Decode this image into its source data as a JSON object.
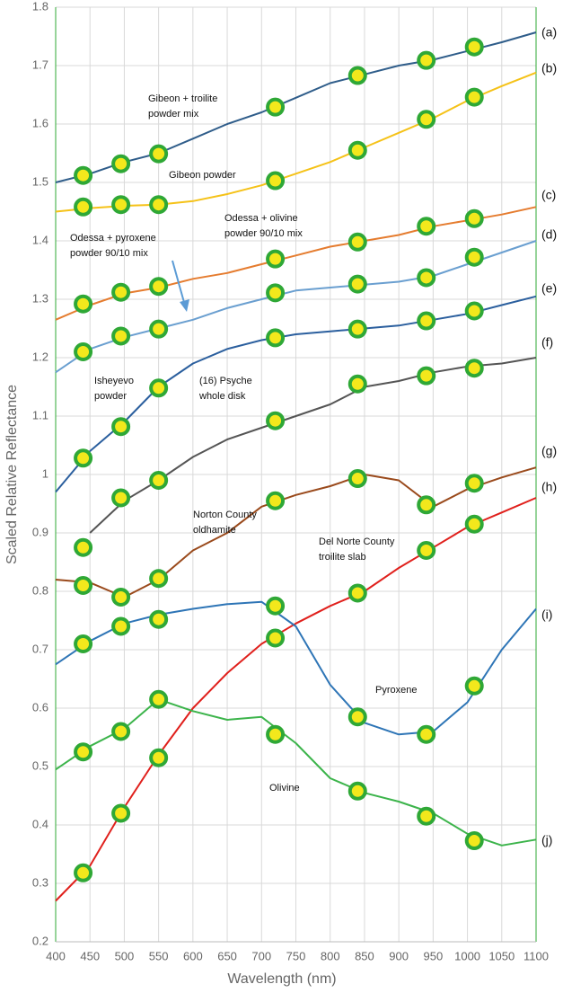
{
  "chart_data": {
    "type": "line",
    "xlabel": "Wavelength (nm)",
    "ylabel": "Scaled Relative Reflectance",
    "x": [
      400,
      450,
      500,
      550,
      600,
      650,
      700,
      750,
      800,
      850,
      900,
      950,
      1000,
      1050,
      1100
    ],
    "marker_x": [
      440,
      495,
      550,
      720,
      840,
      940,
      1010
    ],
    "marker_color": "#f3e81c",
    "marker_edge": "#2fa836",
    "xlim": [
      400,
      1100
    ],
    "ylim": [
      0.2,
      1.8
    ],
    "xticks": [
      400,
      450,
      500,
      550,
      600,
      650,
      700,
      750,
      800,
      850,
      900,
      950,
      1000,
      1050,
      1100
    ],
    "yticks": [
      0.2,
      0.3,
      0.4,
      0.5,
      0.6,
      0.7,
      0.8,
      0.9,
      1,
      1.1,
      1.2,
      1.3,
      1.4,
      1.5,
      1.6,
      1.7,
      1.8
    ],
    "grid": true,
    "series": [
      {
        "tag": "(a)",
        "label": [
          "Gibeon + troilite",
          "powder mix"
        ],
        "color": "#2f5d8a",
        "values": [
          1.5,
          1.515,
          1.535,
          1.55,
          1.575,
          1.6,
          1.62,
          1.645,
          1.67,
          1.685,
          1.7,
          1.71,
          1.725,
          1.74,
          1.757
        ],
        "marker_values": [
          1.512,
          1.532,
          1.549,
          1.629,
          1.683,
          1.709,
          1.732
        ]
      },
      {
        "tag": "(b)",
        "label": [
          "Gibeon powder"
        ],
        "color": "#f5c218",
        "values": [
          1.45,
          1.456,
          1.46,
          1.462,
          1.468,
          1.48,
          1.495,
          1.515,
          1.535,
          1.56,
          1.585,
          1.61,
          1.64,
          1.665,
          1.688
        ],
        "marker_values": [
          1.458,
          1.462,
          1.462,
          1.503,
          1.555,
          1.608,
          1.646
        ]
      },
      {
        "tag": "(c)",
        "label": [
          "Odessa + olivine",
          "powder 90/10 mix"
        ],
        "color": "#e57c2f",
        "values": [
          1.265,
          1.29,
          1.31,
          1.32,
          1.335,
          1.345,
          1.36,
          1.375,
          1.39,
          1.4,
          1.41,
          1.425,
          1.435,
          1.445,
          1.458
        ],
        "marker_values": [
          1.292,
          1.312,
          1.322,
          1.369,
          1.398,
          1.425,
          1.438
        ]
      },
      {
        "tag": "(d)",
        "label": [
          "Odessa + pyroxene",
          "powder 90/10 mix"
        ],
        "color": "#6a9fd0",
        "values": [
          1.175,
          1.215,
          1.235,
          1.25,
          1.265,
          1.285,
          1.3,
          1.315,
          1.32,
          1.325,
          1.33,
          1.34,
          1.36,
          1.38,
          1.4
        ],
        "marker_values": [
          1.21,
          1.237,
          1.249,
          1.311,
          1.326,
          1.337,
          1.372
        ]
      },
      {
        "tag": "(e)",
        "label": [
          "Isheyevo",
          "powder"
        ],
        "color": "#2b5f9e",
        "values": [
          0.97,
          1.04,
          1.09,
          1.15,
          1.19,
          1.215,
          1.23,
          1.24,
          1.245,
          1.25,
          1.255,
          1.265,
          1.275,
          1.29,
          1.305
        ],
        "marker_values": [
          1.028,
          1.082,
          1.148,
          1.234,
          1.249,
          1.263,
          1.28
        ]
      },
      {
        "tag": "(f)",
        "label": [
          "(16) Psyche",
          "whole disk"
        ],
        "color": "#555555",
        "values": [
          null,
          0.9,
          0.955,
          0.99,
          1.03,
          1.06,
          1.08,
          1.1,
          1.12,
          1.15,
          1.16,
          1.175,
          1.185,
          1.19,
          1.2
        ],
        "marker_values": [
          0.875,
          0.96,
          0.99,
          1.092,
          1.155,
          1.169,
          1.182
        ]
      },
      {
        "tag": "(g)",
        "label": [
          "Norton County",
          "oldhamite"
        ],
        "color": "#9a4a1c",
        "values": [
          0.82,
          0.815,
          0.79,
          0.82,
          0.87,
          0.9,
          0.945,
          0.965,
          0.98,
          1.0,
          0.99,
          0.945,
          0.975,
          0.995,
          1.012
        ],
        "marker_values": [
          0.81,
          0.79,
          0.822,
          0.955,
          0.993,
          0.948,
          0.985
        ]
      },
      {
        "tag": "(h)",
        "label": [
          "Del Norte County",
          "troilite slab"
        ],
        "color": "#e0201c",
        "values": [
          0.27,
          0.33,
          0.43,
          0.52,
          0.6,
          0.66,
          0.71,
          0.745,
          0.775,
          0.8,
          0.84,
          0.875,
          0.91,
          0.935,
          0.96
        ],
        "marker_values": [
          0.318,
          0.42,
          0.515,
          0.72,
          0.797,
          0.87,
          0.915
        ]
      },
      {
        "tag": "(i)",
        "label": [
          "Pyroxene"
        ],
        "color": "#2e75b6",
        "values": [
          0.675,
          0.715,
          0.745,
          0.76,
          0.77,
          0.778,
          0.782,
          0.74,
          0.64,
          0.575,
          0.555,
          0.56,
          0.61,
          0.7,
          0.77
        ],
        "marker_values": [
          0.71,
          0.74,
          0.752,
          0.775,
          0.585,
          0.555,
          0.638
        ]
      },
      {
        "tag": "(j)",
        "label": [
          "Olivine"
        ],
        "color": "#3cb44b",
        "values": [
          0.495,
          0.535,
          0.565,
          0.615,
          0.595,
          0.58,
          0.585,
          0.54,
          0.48,
          0.455,
          0.44,
          0.42,
          0.385,
          0.365,
          0.375
        ],
        "marker_values": [
          0.525,
          0.56,
          0.615,
          0.555,
          0.458,
          0.415,
          0.373
        ]
      }
    ]
  }
}
